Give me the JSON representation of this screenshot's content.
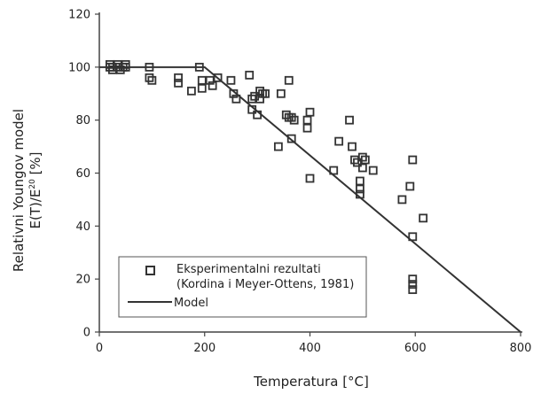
{
  "chart_data": {
    "type": "scatter",
    "xlabel": "Temperatura [°C]",
    "ylabel_line1": "Relativni Youngov model",
    "ylabel_line2_main": "E(T)/E",
    "ylabel_line2_sup": "20",
    "ylabel_line2_tail": " [%]",
    "xlim": [
      0,
      800
    ],
    "ylim": [
      0,
      120
    ],
    "xticks": [
      0,
      200,
      400,
      600,
      800
    ],
    "yticks": [
      0,
      20,
      40,
      60,
      80,
      100,
      120
    ],
    "grid": false,
    "legend_position": "bottom-left",
    "series": [
      {
        "name": "Eksperimentalni rezultati",
        "name_line2": "(Kordina i Meyer-Ottens, 1981)",
        "type": "scatter",
        "marker": "square",
        "color": "#333333",
        "points": [
          [
            20,
            100
          ],
          [
            20,
            101
          ],
          [
            25,
            100
          ],
          [
            25,
            99
          ],
          [
            35,
            100
          ],
          [
            35,
            101
          ],
          [
            40,
            99
          ],
          [
            45,
            100
          ],
          [
            50,
            100
          ],
          [
            50,
            101
          ],
          [
            95,
            100
          ],
          [
            95,
            96
          ],
          [
            100,
            95
          ],
          [
            150,
            96
          ],
          [
            150,
            94
          ],
          [
            175,
            91
          ],
          [
            190,
            100
          ],
          [
            195,
            95
          ],
          [
            195,
            92
          ],
          [
            210,
            95
          ],
          [
            215,
            93
          ],
          [
            225,
            96
          ],
          [
            250,
            95
          ],
          [
            255,
            90
          ],
          [
            260,
            88
          ],
          [
            285,
            97
          ],
          [
            290,
            88
          ],
          [
            290,
            84
          ],
          [
            295,
            89
          ],
          [
            300,
            82
          ],
          [
            305,
            91
          ],
          [
            305,
            88
          ],
          [
            310,
            90
          ],
          [
            315,
            90
          ],
          [
            340,
            70
          ],
          [
            345,
            90
          ],
          [
            355,
            82
          ],
          [
            360,
            95
          ],
          [
            360,
            81
          ],
          [
            365,
            73
          ],
          [
            365,
            81
          ],
          [
            370,
            80
          ],
          [
            395,
            77
          ],
          [
            395,
            80
          ],
          [
            400,
            83
          ],
          [
            400,
            58
          ],
          [
            445,
            61
          ],
          [
            455,
            72
          ],
          [
            475,
            80
          ],
          [
            480,
            70
          ],
          [
            485,
            65
          ],
          [
            490,
            64
          ],
          [
            495,
            57
          ],
          [
            495,
            52
          ],
          [
            495,
            54
          ],
          [
            500,
            62
          ],
          [
            500,
            66
          ],
          [
            505,
            65
          ],
          [
            520,
            61
          ],
          [
            575,
            50
          ],
          [
            590,
            55
          ],
          [
            595,
            65
          ],
          [
            595,
            36
          ],
          [
            595,
            20
          ],
          [
            595,
            18
          ],
          [
            595,
            16
          ],
          [
            615,
            43
          ]
        ]
      },
      {
        "name": "Model",
        "type": "line",
        "color": "#333333",
        "points": [
          [
            0,
            100
          ],
          [
            200,
            100
          ],
          [
            800,
            0
          ]
        ]
      }
    ]
  }
}
